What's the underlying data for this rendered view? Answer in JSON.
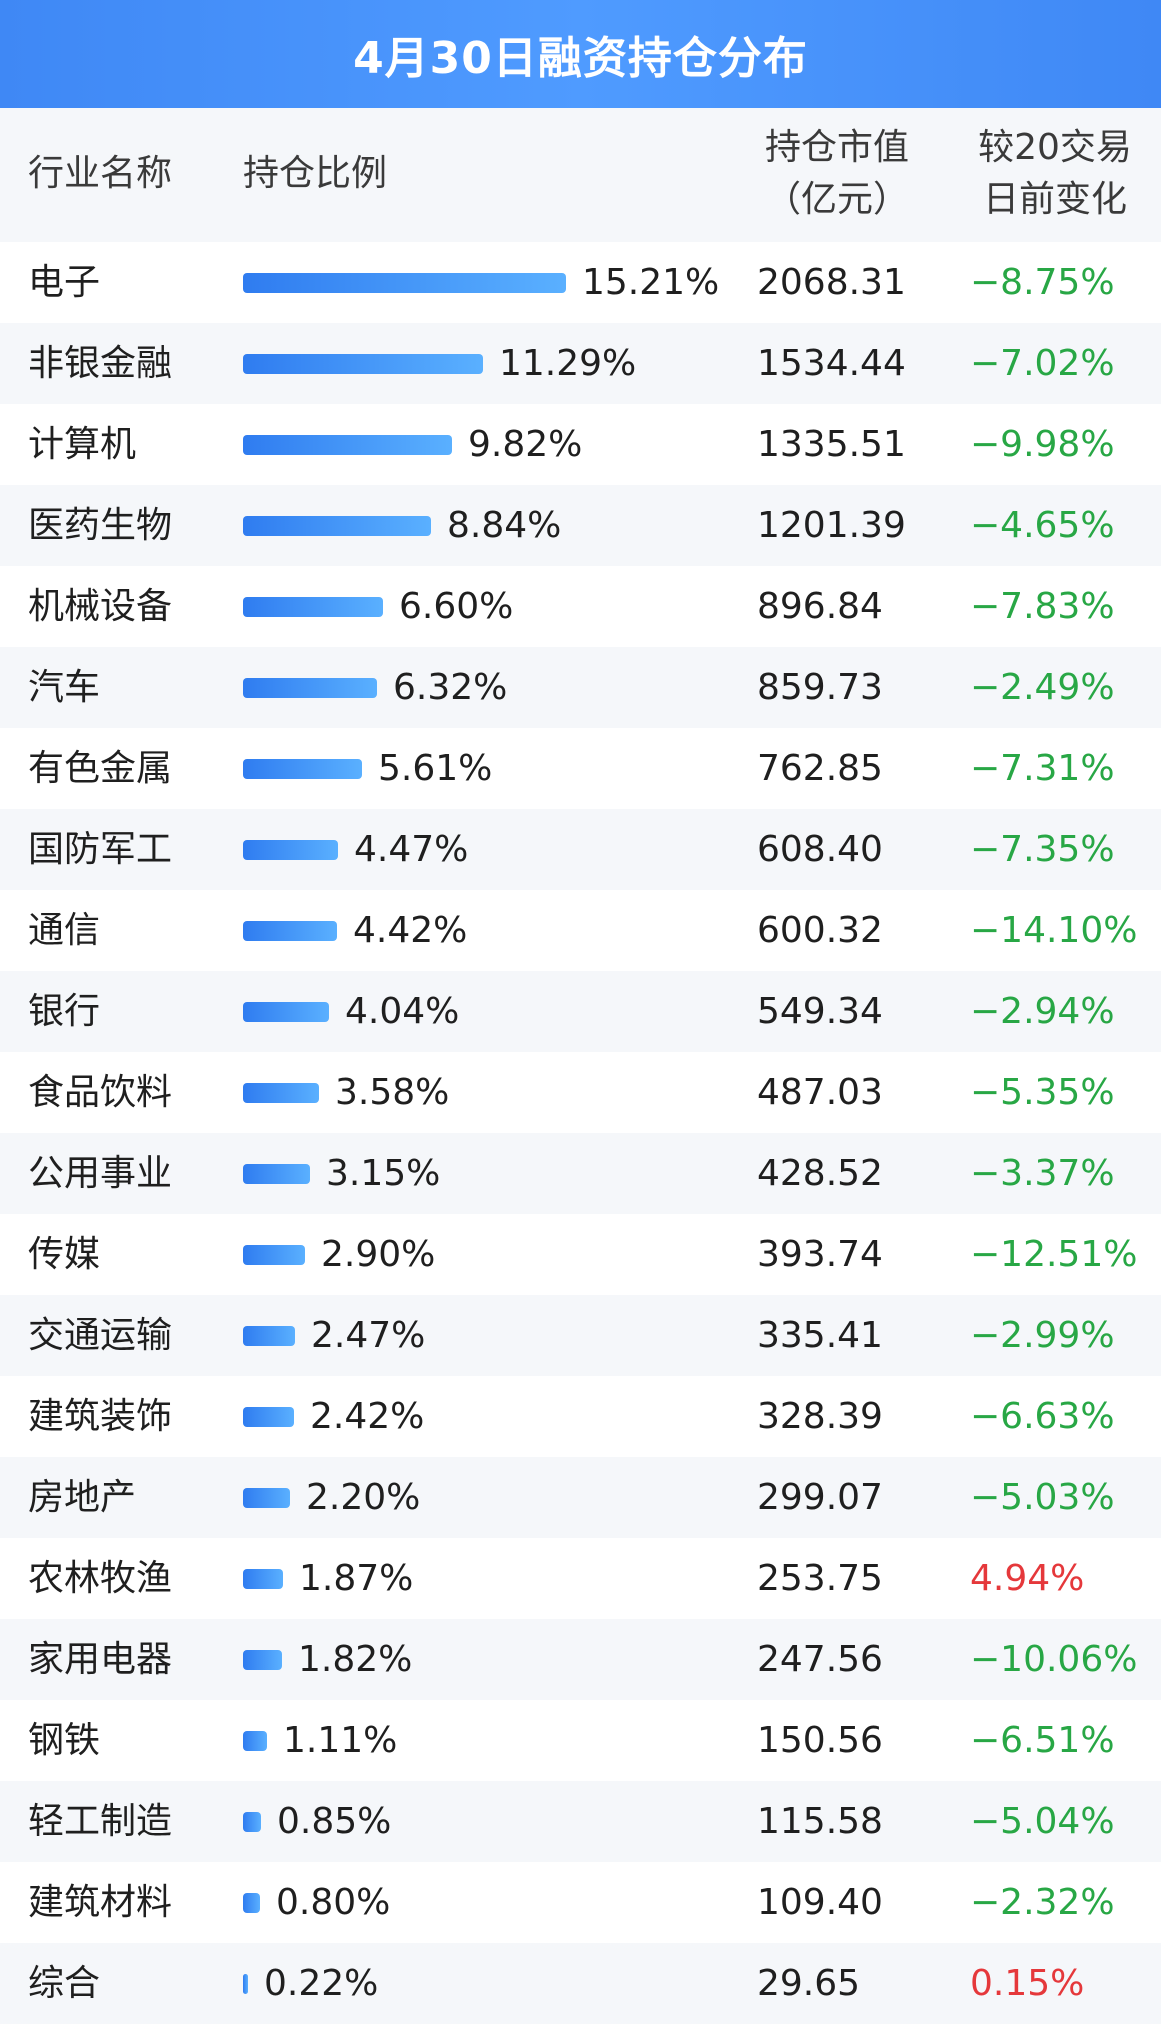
{
  "title": "4月30日融资持仓分布",
  "header": {
    "name": "行业名称",
    "ratio": "持仓比例",
    "value_line1": "持仓市值",
    "value_line2": "（亿元）",
    "change_line1": "较20交易",
    "change_line2": "日前变化"
  },
  "colors": {
    "title_bg": "#3f88f5",
    "bar": "#3a8cf7",
    "negative": "#28a745",
    "positive": "#e5383b",
    "stripe": "#f5f7fa"
  },
  "chart_data": {
    "type": "table",
    "max_ratio": 15.21,
    "rows": [
      {
        "name": "电子",
        "ratio": 15.21,
        "ratio_label": "15.21%",
        "value": "2068.31",
        "change": "−8.75%",
        "sign": "neg"
      },
      {
        "name": "非银金融",
        "ratio": 11.29,
        "ratio_label": "11.29%",
        "value": "1534.44",
        "change": "−7.02%",
        "sign": "neg"
      },
      {
        "name": "计算机",
        "ratio": 9.82,
        "ratio_label": "9.82%",
        "value": "1335.51",
        "change": "−9.98%",
        "sign": "neg"
      },
      {
        "name": "医药生物",
        "ratio": 8.84,
        "ratio_label": "8.84%",
        "value": "1201.39",
        "change": "−4.65%",
        "sign": "neg"
      },
      {
        "name": "机械设备",
        "ratio": 6.6,
        "ratio_label": "6.60%",
        "value": "896.84",
        "change": "−7.83%",
        "sign": "neg"
      },
      {
        "name": "汽车",
        "ratio": 6.32,
        "ratio_label": "6.32%",
        "value": "859.73",
        "change": "−2.49%",
        "sign": "neg"
      },
      {
        "name": "有色金属",
        "ratio": 5.61,
        "ratio_label": "5.61%",
        "value": "762.85",
        "change": "−7.31%",
        "sign": "neg"
      },
      {
        "name": "国防军工",
        "ratio": 4.47,
        "ratio_label": "4.47%",
        "value": "608.40",
        "change": "−7.35%",
        "sign": "neg"
      },
      {
        "name": "通信",
        "ratio": 4.42,
        "ratio_label": "4.42%",
        "value": "600.32",
        "change": "−14.10%",
        "sign": "neg"
      },
      {
        "name": "银行",
        "ratio": 4.04,
        "ratio_label": "4.04%",
        "value": "549.34",
        "change": "−2.94%",
        "sign": "neg"
      },
      {
        "name": "食品饮料",
        "ratio": 3.58,
        "ratio_label": "3.58%",
        "value": "487.03",
        "change": "−5.35%",
        "sign": "neg"
      },
      {
        "name": "公用事业",
        "ratio": 3.15,
        "ratio_label": "3.15%",
        "value": "428.52",
        "change": "−3.37%",
        "sign": "neg"
      },
      {
        "name": "传媒",
        "ratio": 2.9,
        "ratio_label": "2.90%",
        "value": "393.74",
        "change": "−12.51%",
        "sign": "neg"
      },
      {
        "name": "交通运输",
        "ratio": 2.47,
        "ratio_label": "2.47%",
        "value": "335.41",
        "change": "−2.99%",
        "sign": "neg"
      },
      {
        "name": "建筑装饰",
        "ratio": 2.42,
        "ratio_label": "2.42%",
        "value": "328.39",
        "change": "−6.63%",
        "sign": "neg"
      },
      {
        "name": "房地产",
        "ratio": 2.2,
        "ratio_label": "2.20%",
        "value": "299.07",
        "change": "−5.03%",
        "sign": "neg"
      },
      {
        "name": "农林牧渔",
        "ratio": 1.87,
        "ratio_label": "1.87%",
        "value": "253.75",
        "change": "4.94%",
        "sign": "pos"
      },
      {
        "name": "家用电器",
        "ratio": 1.82,
        "ratio_label": "1.82%",
        "value": "247.56",
        "change": "−10.06%",
        "sign": "neg"
      },
      {
        "name": "钢铁",
        "ratio": 1.11,
        "ratio_label": "1.11%",
        "value": "150.56",
        "change": "−6.51%",
        "sign": "neg"
      },
      {
        "name": "轻工制造",
        "ratio": 0.85,
        "ratio_label": "0.85%",
        "value": "115.58",
        "change": "−5.04%",
        "sign": "neg"
      },
      {
        "name": "建筑材料",
        "ratio": 0.8,
        "ratio_label": "0.80%",
        "value": "109.40",
        "change": "−2.32%",
        "sign": "neg"
      },
      {
        "name": "综合",
        "ratio": 0.22,
        "ratio_label": "0.22%",
        "value": "29.65",
        "change": "0.15%",
        "sign": "pos"
      }
    ]
  }
}
